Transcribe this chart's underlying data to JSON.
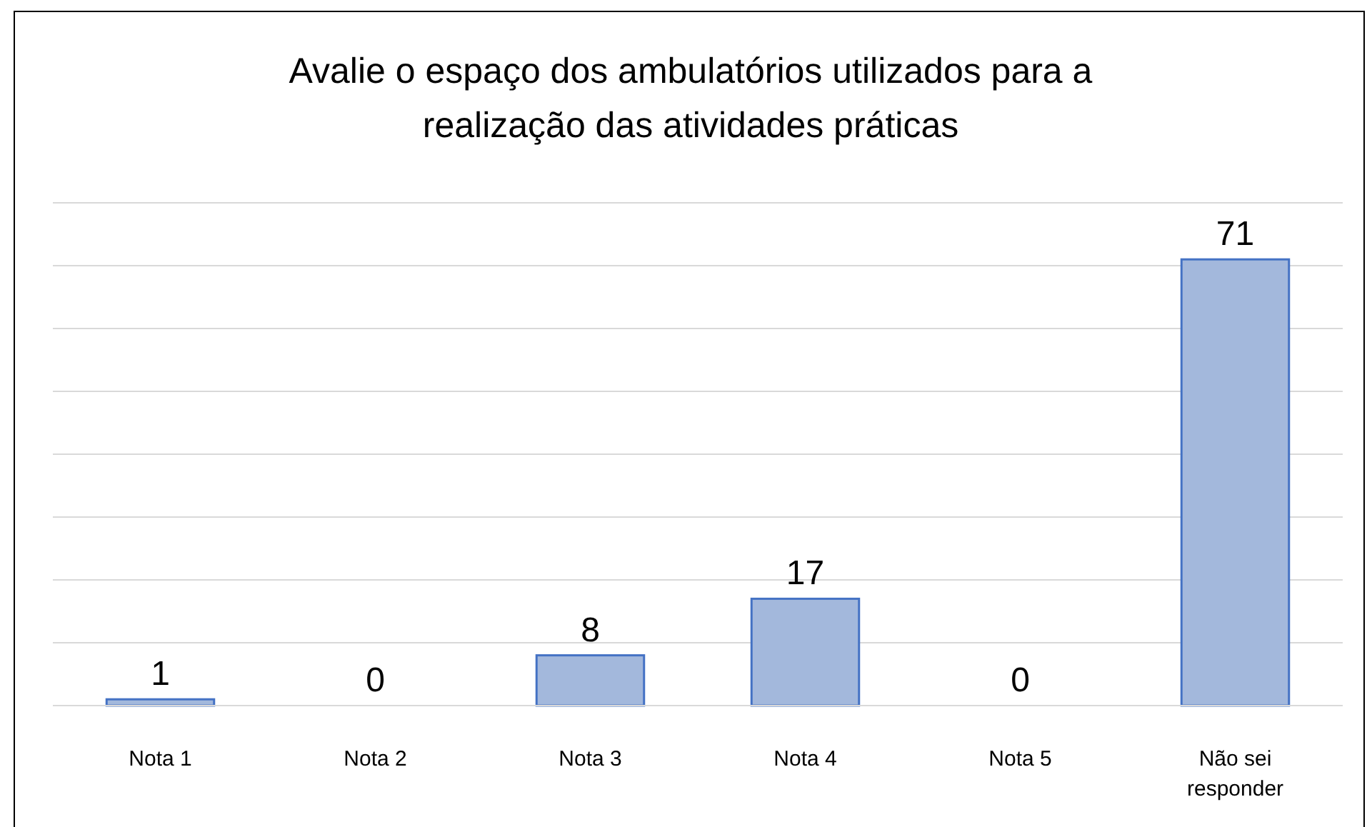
{
  "chart_data": {
    "type": "bar",
    "title": "Avalie o espaço dos ambulatórios utilizados para a realização das atividades práticas",
    "categories": [
      "Nota 1",
      "Nota 2",
      "Nota 3",
      "Nota 4",
      "Nota 5",
      "Não sei responder"
    ],
    "values": [
      1,
      0,
      8,
      17,
      0,
      71
    ],
    "color": "#a3b8dc",
    "ylim": [
      0,
      80
    ],
    "yticks": [
      {
        "value": 0,
        "label": null
      },
      {
        "value": 10,
        "label": null
      },
      {
        "value": 20,
        "label": null
      },
      {
        "value": 30,
        "label": null
      },
      {
        "value": 40,
        "label": null
      },
      {
        "value": 50,
        "label": null
      },
      {
        "value": 60,
        "label": null
      },
      {
        "value": 70,
        "label": null
      },
      {
        "value": 80,
        "label": null
      }
    ],
    "grid": "y",
    "tick_labels": "x",
    "data_labels": true
  }
}
